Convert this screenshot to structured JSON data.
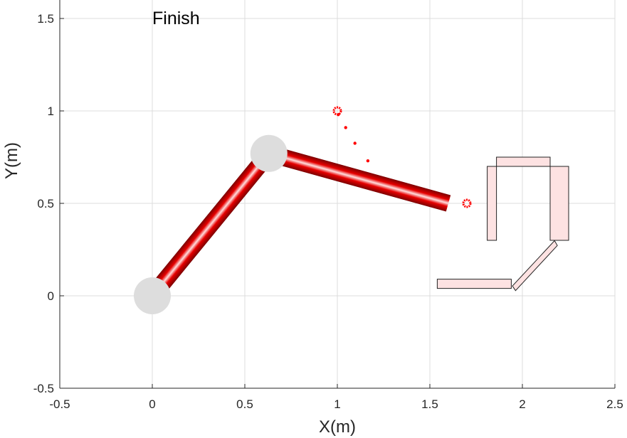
{
  "chart_data": {
    "type": "scatter",
    "xlabel": "X(m)",
    "ylabel": "Y(m)",
    "xlim": [
      -0.5,
      2.5
    ],
    "ylim": [
      -0.5,
      1.6
    ],
    "xticks": [
      -0.5,
      0,
      0.5,
      1,
      1.5,
      2,
      2.5
    ],
    "xtick_labels": [
      "-0.5",
      "0",
      "0.5",
      "1",
      "1.5",
      "2",
      "2.5"
    ],
    "yticks": [
      -0.5,
      0,
      0.5,
      1,
      1.5
    ],
    "ytick_labels": [
      "-0.5",
      "0",
      "0.5",
      "1",
      "1.5"
    ],
    "grid": true,
    "annotation": {
      "text": "Finish",
      "x": 0.0,
      "y": 1.5
    },
    "robot_arm": {
      "joints": [
        {
          "x": 0,
          "y": 0
        },
        {
          "x": 0.63,
          "y": 0.77
        }
      ],
      "end_effector": {
        "x": 1.6,
        "y": 0.5
      },
      "link_color": "#cc0000",
      "joint_color": "#dddddd"
    },
    "markers": [
      {
        "x": 1.0,
        "y": 1.0
      },
      {
        "x": 1.7,
        "y": 0.5
      }
    ],
    "trajectory_dots": [
      {
        "x": 1.005,
        "y": 0.98
      },
      {
        "x": 1.045,
        "y": 0.91
      },
      {
        "x": 1.095,
        "y": 0.825
      },
      {
        "x": 1.165,
        "y": 0.73
      }
    ],
    "marker_color": "#ff0000",
    "obstacles": [
      {
        "name": "obstacle-left-pillar",
        "points": [
          [
            1.81,
            0.7
          ],
          [
            1.86,
            0.7
          ],
          [
            1.86,
            0.3
          ],
          [
            1.81,
            0.3
          ]
        ]
      },
      {
        "name": "obstacle-top-bar",
        "points": [
          [
            1.86,
            0.75
          ],
          [
            2.15,
            0.75
          ],
          [
            2.15,
            0.7
          ],
          [
            1.86,
            0.7
          ]
        ]
      },
      {
        "name": "obstacle-right-pillar",
        "points": [
          [
            2.15,
            0.7
          ],
          [
            2.25,
            0.7
          ],
          [
            2.25,
            0.3
          ],
          [
            2.15,
            0.3
          ]
        ]
      },
      {
        "name": "obstacle-diagonal-bar",
        "points": [
          [
            1.946,
            0.053
          ],
          [
            1.963,
            0.028
          ],
          [
            2.189,
            0.272
          ],
          [
            2.174,
            0.298
          ]
        ]
      },
      {
        "name": "obstacle-bottom-bar",
        "points": [
          [
            1.54,
            0.09
          ],
          [
            1.94,
            0.09
          ],
          [
            1.94,
            0.04
          ],
          [
            1.54,
            0.04
          ]
        ]
      }
    ],
    "obstacle_fill": "#fde2e2",
    "obstacle_stroke": "#222222"
  }
}
